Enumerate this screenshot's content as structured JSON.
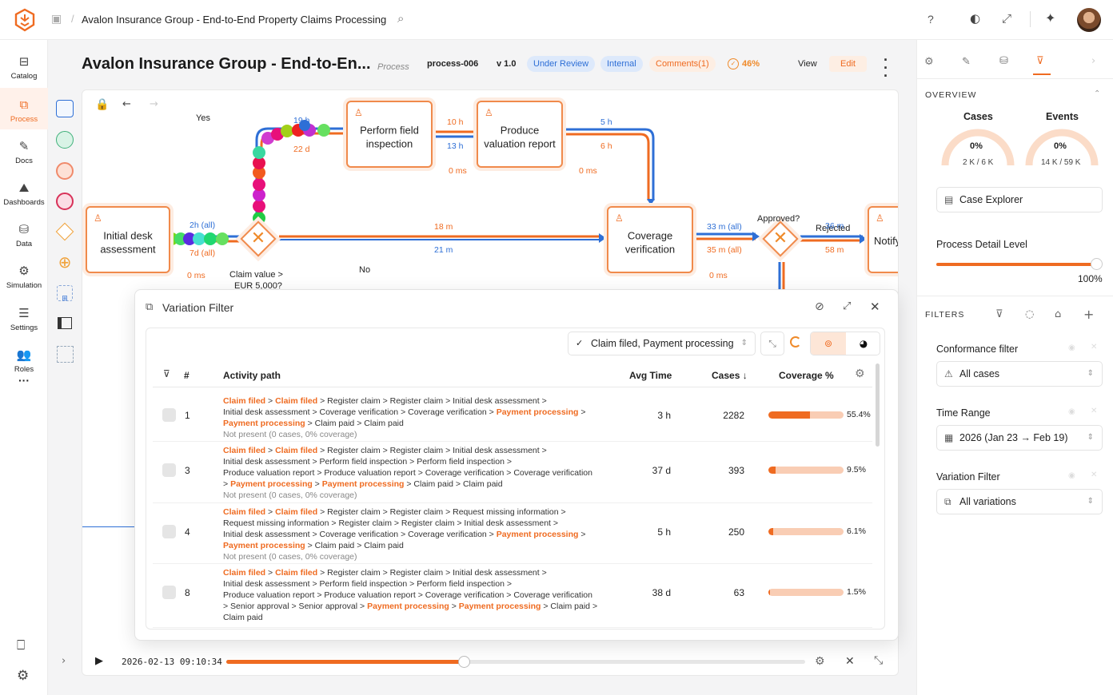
{
  "topbar": {
    "breadcrumb_sep": "/",
    "title": "Avalon Insurance Group - End-to-End Property Claims Processing"
  },
  "nav": {
    "items": [
      {
        "label": "Catalog",
        "icon": "catalog-icon"
      },
      {
        "label": "Process",
        "icon": "process-icon"
      },
      {
        "label": "Docs",
        "icon": "docs-icon"
      },
      {
        "label": "Dashboards",
        "icon": "dashboards-icon"
      },
      {
        "label": "Data",
        "icon": "data-icon"
      },
      {
        "label": "Simulation",
        "icon": "simulation-icon"
      },
      {
        "label": "Settings",
        "icon": "settings-icon"
      },
      {
        "label": "Roles",
        "icon": "roles-icon"
      }
    ],
    "more": "···"
  },
  "header": {
    "title": "Avalon Insurance Group - End-to-En...",
    "type": "Process",
    "id": "process-006",
    "version": "v 1.0",
    "status": "Under Review",
    "visibility": "Internal",
    "comments": "Comments(1)",
    "progress": "46%",
    "view": "View",
    "edit": "Edit"
  },
  "diagram": {
    "nodes": {
      "initial": "Initial desk assessment",
      "field": "Perform field inspection",
      "valuation": "Produce valuation report",
      "coverage": "Coverage verification",
      "notify": "Notify"
    },
    "labels": {
      "yes": "Yes",
      "no": "No",
      "claim_value": "Claim value >",
      "claim_value2": "EUR 5,000?",
      "approved": "Approved?",
      "rejected": "Rejected",
      "e1a": "2h (all)",
      "e1b": "7d (all)",
      "e1c": "0 ms",
      "e2a": "19 h",
      "e2b": "22 d",
      "e3a": "10 h",
      "e3b": "13 h",
      "e3c": "0 ms",
      "e4a": "5 h",
      "e4b": "6 h",
      "e4c": "0 ms",
      "e5a": "18 m",
      "e5b": "21 m",
      "e6a": "33 m (all)",
      "e6b": "35 m (all)",
      "e6c": "0 ms",
      "e7a": "36 m",
      "e7b": "58 m"
    }
  },
  "modal": {
    "title": "Variation Filter",
    "activity_select": "Claim filed, Payment processing",
    "columns": {
      "num": "#",
      "path": "Activity path",
      "avg": "Avg Time",
      "cases": "Cases ↓",
      "coverage": "Coverage %"
    },
    "rows": [
      {
        "num": "1",
        "lines": [
          [
            [
              "Claim filed",
              "o"
            ],
            [
              " > ",
              "n"
            ],
            [
              "Claim filed",
              "o"
            ],
            [
              " > Register claim > Register claim > Initial desk assessment >",
              "n"
            ]
          ],
          [
            [
              "Initial desk assessment > Coverage verification > Coverage verification > ",
              "n"
            ],
            [
              "Payment processing",
              "o"
            ],
            [
              " >",
              "n"
            ]
          ],
          [
            [
              "Payment processing",
              "o"
            ],
            [
              " > Claim paid > Claim paid",
              "n"
            ]
          ]
        ],
        "note": "Not present (0 cases, 0% coverage)",
        "avg": "3 h",
        "cases": "2282",
        "coverage": "55.4%",
        "fill": 0.554
      },
      {
        "num": "3",
        "lines": [
          [
            [
              "Claim filed",
              "o"
            ],
            [
              " > ",
              "n"
            ],
            [
              "Claim filed",
              "o"
            ],
            [
              " > Register claim > Register claim > Initial desk assessment >",
              "n"
            ]
          ],
          [
            [
              "Initial desk assessment > Perform field inspection > Perform field inspection >",
              "n"
            ]
          ],
          [
            [
              "Produce valuation report > Produce valuation report > Coverage verification > Coverage verification",
              "n"
            ]
          ],
          [
            [
              " > ",
              "n"
            ],
            [
              "Payment processing",
              "o"
            ],
            [
              " > ",
              "n"
            ],
            [
              "Payment processing",
              "o"
            ],
            [
              " > Claim paid > Claim paid",
              "n"
            ]
          ]
        ],
        "note": "Not present (0 cases, 0% coverage)",
        "avg": "37 d",
        "cases": "393",
        "coverage": "9.5%",
        "fill": 0.095
      },
      {
        "num": "4",
        "lines": [
          [
            [
              "Claim filed",
              "o"
            ],
            [
              " > ",
              "n"
            ],
            [
              "Claim filed",
              "o"
            ],
            [
              " > Register claim > Register claim > Request missing information >",
              "n"
            ]
          ],
          [
            [
              "Request missing information > Register claim > Register claim > Initial desk assessment >",
              "n"
            ]
          ],
          [
            [
              "Initial desk assessment > Coverage verification > Coverage verification > ",
              "n"
            ],
            [
              "Payment processing",
              "o"
            ],
            [
              " >",
              "n"
            ]
          ],
          [
            [
              "Payment processing",
              "o"
            ],
            [
              " > Claim paid > Claim paid",
              "n"
            ]
          ]
        ],
        "note": "Not present (0 cases, 0% coverage)",
        "avg": "5 h",
        "cases": "250",
        "coverage": "6.1%",
        "fill": 0.061
      },
      {
        "num": "8",
        "lines": [
          [
            [
              "Claim filed",
              "o"
            ],
            [
              " > ",
              "n"
            ],
            [
              "Claim filed",
              "o"
            ],
            [
              " > Register claim > Register claim > Initial desk assessment >",
              "n"
            ]
          ],
          [
            [
              "Initial desk assessment > Perform field inspection > Perform field inspection >",
              "n"
            ]
          ],
          [
            [
              "Produce valuation report > Produce valuation report > Coverage verification > Coverage verification",
              "n"
            ]
          ],
          [
            [
              " > Senior approval > Senior approval > ",
              "n"
            ],
            [
              "Payment processing",
              "o"
            ],
            [
              " > ",
              "n"
            ],
            [
              "Payment processing",
              "o"
            ],
            [
              " > Claim paid >",
              "n"
            ]
          ],
          [
            [
              "Claim paid",
              "n"
            ]
          ]
        ],
        "note": "",
        "avg": "38 d",
        "cases": "63",
        "coverage": "1.5%",
        "fill": 0.015
      }
    ]
  },
  "playback": {
    "timestamp": "2026-02-13 09:10:34",
    "progress": 0.41
  },
  "right": {
    "overview": "OVERVIEW",
    "cases_label": "Cases",
    "cases_pct": "0%",
    "cases_count": "2 K / 6 K",
    "events_label": "Events",
    "events_pct": "0%",
    "events_count": "14 K / 59 K",
    "case_explorer": "Case Explorer",
    "detail_label": "Process Detail Level",
    "detail_value": "100%",
    "filters": "FILTERS",
    "conformance_label": "Conformance filter",
    "conformance_value": "All cases",
    "time_label": "Time Range",
    "time_value": "2026 (Jan 23 → Feb 19)",
    "variation_label": "Variation Filter",
    "variation_value": "All variations"
  },
  "colors": {
    "accent": "#ef6b21",
    "blue": "#2e6fd6"
  }
}
